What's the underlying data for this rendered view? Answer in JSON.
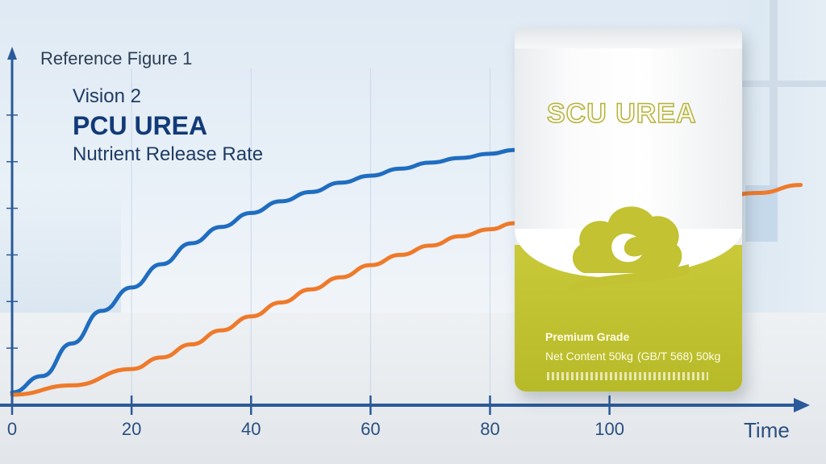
{
  "header": {
    "reference": "Reference Figure 1",
    "vision": "Vision 2",
    "product": "PCU UREA",
    "subtitle": "Nutrient Release Rate"
  },
  "bag": {
    "brand": "SCU UREA",
    "grade": "Premium Grade",
    "net_content": "Net Content 50kg",
    "standard": "(GB/T 568) 50kg"
  },
  "colors": {
    "series_blue": "#1f6dc0",
    "series_orange": "#ee7a2a",
    "axis": "#2a5a99",
    "bag_green": "#c2c233"
  },
  "chart_data": {
    "type": "line",
    "title": "PCU UREA",
    "xlabel": "Time",
    "ylabel": "",
    "xlim": [
      0,
      133
    ],
    "ylim": [
      0,
      7
    ],
    "x_ticks": [
      0,
      20,
      40,
      60,
      80,
      100
    ],
    "grid": true,
    "series": [
      {
        "values": [
          [
            0,
            0.05
          ],
          [
            5,
            0.4
          ],
          [
            10,
            1.1
          ],
          [
            15,
            1.8
          ],
          [
            20,
            2.3
          ],
          [
            25,
            2.8
          ],
          [
            30,
            3.25
          ],
          [
            35,
            3.6
          ],
          [
            40,
            3.9
          ],
          [
            45,
            4.15
          ],
          [
            50,
            4.35
          ],
          [
            55,
            4.55
          ],
          [
            60,
            4.7
          ],
          [
            65,
            4.85
          ],
          [
            70,
            4.98
          ],
          [
            75,
            5.08
          ],
          [
            80,
            5.17
          ],
          [
            84,
            5.25
          ]
        ]
      },
      {
        "values": [
          [
            0,
            0
          ],
          [
            10,
            0.2
          ],
          [
            20,
            0.55
          ],
          [
            25,
            0.8
          ],
          [
            30,
            1.08
          ],
          [
            35,
            1.38
          ],
          [
            40,
            1.68
          ],
          [
            45,
            1.98
          ],
          [
            50,
            2.26
          ],
          [
            55,
            2.52
          ],
          [
            60,
            2.78
          ],
          [
            65,
            3.0
          ],
          [
            70,
            3.2
          ],
          [
            75,
            3.4
          ],
          [
            80,
            3.55
          ],
          [
            84,
            3.68
          ],
          [
            95,
            3.85
          ],
          [
            105,
            4.0
          ],
          [
            115,
            4.15
          ],
          [
            125,
            4.33
          ],
          [
            132,
            4.5
          ]
        ]
      }
    ]
  }
}
